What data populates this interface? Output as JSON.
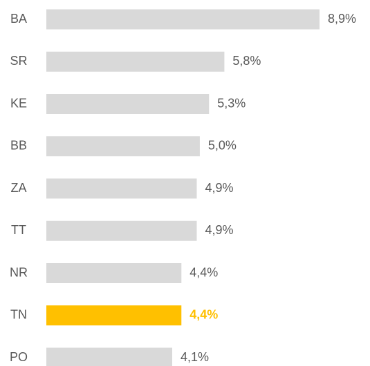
{
  "chart_data": {
    "type": "hbar",
    "categories": [
      "BA",
      "SR",
      "KE",
      "BB",
      "ZA",
      "TT",
      "NR",
      "TN",
      "PO"
    ],
    "values": [
      8.9,
      5.8,
      5.3,
      5.0,
      4.9,
      4.9,
      4.4,
      4.4,
      4.1
    ],
    "value_labels": [
      "8,9%",
      "5,8%",
      "5,3%",
      "5,0%",
      "4,9%",
      "4,9%",
      "4,4%",
      "4,4%",
      "4,1%"
    ],
    "color": "#d9d9d9",
    "colors": [
      "#d9d9d9",
      "#d9d9d9",
      "#d9d9d9",
      "#d9d9d9",
      "#d9d9d9",
      "#d9d9d9",
      "#d9d9d9",
      "#ffc000",
      "#d9d9d9"
    ]
  }
}
